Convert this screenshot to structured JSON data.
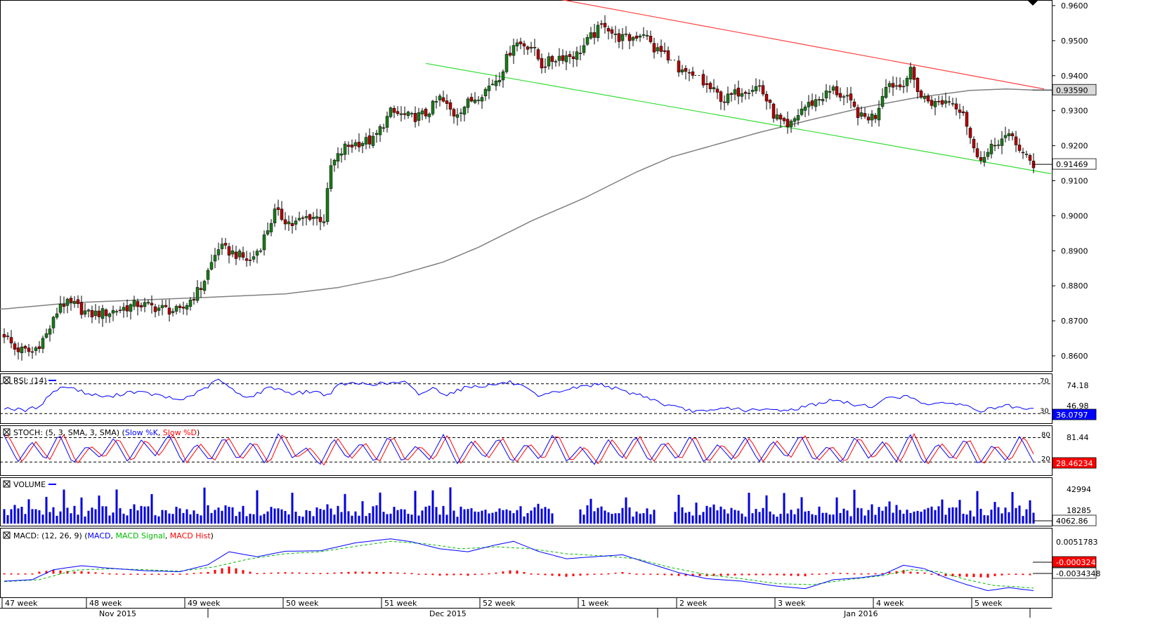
{
  "colors": {
    "up": "#1a7a1a",
    "down": "#b00000",
    "ma": "#808080",
    "channel_top": "#ff4040",
    "channel_bottom": "#33dd33",
    "rsi": "#0000ff",
    "stoch_k": "#0000ff",
    "stoch_d": "#ff0000",
    "volume": "#0000dd",
    "macd": "#0000ff",
    "macd_signal": "#00bb00",
    "macd_hist": "#ff0000",
    "badge_blue": "#0000ff",
    "badge_red": "#ff0000",
    "badge_gray": "#d9d9d9"
  },
  "chart_data": [
    {
      "type": "candlestick",
      "panel": "price",
      "ylim": [
        0.856,
        0.962
      ],
      "y_ticks": [
        "0.9600",
        "0.9500",
        "0.9400",
        "0.9300",
        "0.9200",
        "0.9100",
        "0.9000",
        "0.8900",
        "0.8800",
        "0.8700",
        "0.8600"
      ],
      "y_tick_values": [
        0.96,
        0.95,
        0.94,
        0.93,
        0.92,
        0.91,
        0.9,
        0.89,
        0.88,
        0.87,
        0.86
      ],
      "anchors": [
        [
          0,
          0.8663
        ],
        [
          3,
          0.862
        ],
        [
          8,
          0.861
        ],
        [
          12,
          0.866
        ],
        [
          14,
          0.87
        ],
        [
          16,
          0.875
        ],
        [
          20,
          0.8745
        ],
        [
          24,
          0.8718
        ],
        [
          30,
          0.8725
        ],
        [
          38,
          0.8748
        ],
        [
          45,
          0.8735
        ],
        [
          50,
          0.8725
        ],
        [
          56,
          0.8795
        ],
        [
          61,
          0.891
        ],
        [
          66,
          0.889
        ],
        [
          70,
          0.887
        ],
        [
          73,
          0.8915
        ],
        [
          77,
          0.901
        ],
        [
          82,
          0.8975
        ],
        [
          87,
          0.9
        ],
        [
          91,
          0.899
        ],
        [
          93,
          0.914
        ],
        [
          97,
          0.9195
        ],
        [
          101,
          0.921
        ],
        [
          105,
          0.9215
        ],
        [
          110,
          0.9295
        ],
        [
          116,
          0.928
        ],
        [
          120,
          0.929
        ],
        [
          124,
          0.9335
        ],
        [
          128,
          0.929
        ],
        [
          133,
          0.933
        ],
        [
          137,
          0.936
        ],
        [
          141,
          0.94
        ],
        [
          145,
          0.9495
        ],
        [
          150,
          0.9485
        ],
        [
          153,
          0.943
        ],
        [
          158,
          0.9455
        ],
        [
          163,
          0.946
        ],
        [
          167,
          0.951
        ],
        [
          171,
          0.955
        ],
        [
          174,
          0.951
        ],
        [
          178,
          0.9505
        ],
        [
          182,
          0.9525
        ],
        [
          185,
          0.9475
        ],
        [
          188,
          0.9465
        ],
        [
          190,
          0.941
        ],
        [
          195,
          0.94
        ],
        [
          200,
          0.937
        ],
        [
          205,
          0.933
        ],
        [
          210,
          0.936
        ],
        [
          215,
          0.937
        ],
        [
          219,
          0.929
        ],
        [
          223,
          0.9245
        ],
        [
          227,
          0.9305
        ],
        [
          232,
          0.9335
        ],
        [
          236,
          0.936
        ],
        [
          240,
          0.933
        ],
        [
          244,
          0.928
        ],
        [
          248,
          0.9285
        ],
        [
          251,
          0.938
        ],
        [
          255,
          0.937
        ],
        [
          258,
          0.941
        ],
        [
          261,
          0.934
        ],
        [
          265,
          0.932
        ],
        [
          269,
          0.933
        ],
        [
          273,
          0.93
        ],
        [
          276,
          0.9185
        ],
        [
          279,
          0.9165
        ],
        [
          283,
          0.9215
        ],
        [
          287,
          0.9225
        ],
        [
          290,
          0.9175
        ],
        [
          293,
          0.9145
        ]
      ],
      "gaps": [
        [
          190,
          191
        ],
        [
          197,
          198
        ]
      ],
      "ma_anchors": [
        [
          0,
          0.8734
        ],
        [
          20,
          0.8752
        ],
        [
          40,
          0.876
        ],
        [
          60,
          0.8768
        ],
        [
          80,
          0.8777
        ],
        [
          95,
          0.8795
        ],
        [
          110,
          0.8825
        ],
        [
          125,
          0.8868
        ],
        [
          135,
          0.891
        ],
        [
          150,
          0.8985
        ],
        [
          165,
          0.905
        ],
        [
          180,
          0.9125
        ],
        [
          190,
          0.9168
        ],
        [
          200,
          0.9196
        ],
        [
          215,
          0.9238
        ],
        [
          230,
          0.9275
        ],
        [
          245,
          0.931
        ],
        [
          260,
          0.9338
        ],
        [
          275,
          0.9358
        ],
        [
          285,
          0.9362
        ],
        [
          293,
          0.9359
        ]
      ],
      "channel_top": [
        [
          157,
          0.962
        ],
        [
          296,
          0.9362
        ]
      ],
      "channel_bottom": [
        [
          120,
          0.9435
        ],
        [
          298,
          0.912
        ]
      ],
      "last_price": "0.91469",
      "ma_value": "0.93590"
    },
    {
      "type": "line",
      "panel": "rsi",
      "title": "RSI: (14)",
      "ylim": [
        18,
        82
      ],
      "levels": [
        70,
        30
      ],
      "level_labels": [
        "70",
        "30"
      ],
      "scale_labels": [
        "74.18",
        "46.98"
      ],
      "anchors": [
        [
          0,
          38
        ],
        [
          6,
          34
        ],
        [
          10,
          40
        ],
        [
          14,
          60
        ],
        [
          18,
          67
        ],
        [
          24,
          56
        ],
        [
          30,
          52
        ],
        [
          36,
          60
        ],
        [
          42,
          56
        ],
        [
          50,
          48
        ],
        [
          56,
          60
        ],
        [
          61,
          76
        ],
        [
          66,
          58
        ],
        [
          70,
          52
        ],
        [
          76,
          66
        ],
        [
          82,
          57
        ],
        [
          88,
          60
        ],
        [
          92,
          55
        ],
        [
          96,
          70
        ],
        [
          102,
          70
        ],
        [
          108,
          70
        ],
        [
          114,
          72
        ],
        [
          118,
          56
        ],
        [
          122,
          64
        ],
        [
          126,
          56
        ],
        [
          132,
          66
        ],
        [
          138,
          68
        ],
        [
          144,
          72
        ],
        [
          148,
          65
        ],
        [
          152,
          52
        ],
        [
          158,
          60
        ],
        [
          164,
          66
        ],
        [
          170,
          70
        ],
        [
          176,
          60
        ],
        [
          182,
          54
        ],
        [
          188,
          42
        ],
        [
          194,
          35
        ],
        [
          200,
          32
        ],
        [
          206,
          38
        ],
        [
          212,
          34
        ],
        [
          218,
          35
        ],
        [
          224,
          35
        ],
        [
          230,
          42
        ],
        [
          236,
          48
        ],
        [
          242,
          42
        ],
        [
          248,
          40
        ],
        [
          252,
          53
        ],
        [
          258,
          52
        ],
        [
          262,
          44
        ],
        [
          266,
          42
        ],
        [
          270,
          45
        ],
        [
          274,
          40
        ],
        [
          278,
          33
        ],
        [
          282,
          38
        ],
        [
          286,
          40
        ],
        [
          290,
          35
        ],
        [
          293,
          36
        ]
      ],
      "value_badge": "36.0797"
    },
    {
      "type": "line",
      "panel": "stoch",
      "title": "STOCH: (5, 3, SMA, 3, SMA)",
      "legend": [
        "Slow %K",
        "Slow %D"
      ],
      "ylim": [
        0,
        100
      ],
      "levels": [
        80,
        20
      ],
      "level_labels": [
        "80",
        "20"
      ],
      "scale_labels": [
        "81.44"
      ],
      "cycle_pattern": [
        85,
        20,
        70,
        25,
        90,
        15,
        60,
        30,
        80,
        20,
        75,
        35,
        88,
        18,
        65,
        22,
        82,
        25,
        70,
        15,
        92,
        30,
        55,
        12,
        78,
        28,
        68,
        18,
        85,
        20,
        60,
        25,
        88,
        15,
        72,
        30,
        80,
        18,
        66,
        25,
        90,
        20,
        58,
        14,
        76,
        28,
        84,
        20,
        70,
        25,
        86,
        18,
        64,
        26,
        80,
        20,
        72,
        30,
        88,
        22,
        60,
        18,
        82,
        28,
        70,
        20,
        90,
        15,
        66,
        25,
        78,
        12,
        62,
        22,
        84,
        20
      ],
      "value_badge": "28.46234"
    },
    {
      "type": "bar",
      "panel": "volume",
      "title": "VOLUME",
      "scale_labels": [
        "42994",
        "18285"
      ],
      "ylim": [
        0,
        60000
      ],
      "gaps": [
        [
          157,
          163
        ],
        [
          186,
          190
        ]
      ],
      "value_badge": "4062.86"
    },
    {
      "type": "line",
      "panel": "macd",
      "title": "MACD: (12, 26, 9)",
      "legend": [
        "MACD",
        "MACD Signal",
        "MACD Hist"
      ],
      "ylim": [
        -0.0046,
        0.0078
      ],
      "scale_labels": [
        "0.0051783"
      ],
      "macd_anchors": [
        [
          0,
          -0.0015
        ],
        [
          8,
          -0.0012
        ],
        [
          14,
          0.0008
        ],
        [
          22,
          0.0016
        ],
        [
          30,
          0.0011
        ],
        [
          40,
          0.0006
        ],
        [
          50,
          0.0004
        ],
        [
          58,
          0.0018
        ],
        [
          64,
          0.0044
        ],
        [
          72,
          0.0034
        ],
        [
          80,
          0.0045
        ],
        [
          90,
          0.0046
        ],
        [
          100,
          0.0062
        ],
        [
          110,
          0.007
        ],
        [
          116,
          0.0064
        ],
        [
          124,
          0.005
        ],
        [
          132,
          0.0044
        ],
        [
          140,
          0.0058
        ],
        [
          145,
          0.0065
        ],
        [
          152,
          0.0045
        ],
        [
          160,
          0.003
        ],
        [
          168,
          0.0034
        ],
        [
          176,
          0.0038
        ],
        [
          184,
          0.002
        ],
        [
          192,
          0.0002
        ],
        [
          200,
          -0.001
        ],
        [
          210,
          -0.0015
        ],
        [
          220,
          -0.0025
        ],
        [
          228,
          -0.003
        ],
        [
          236,
          -0.0012
        ],
        [
          244,
          -0.0008
        ],
        [
          250,
          -0.0002
        ],
        [
          256,
          0.0017
        ],
        [
          262,
          0.001
        ],
        [
          268,
          -0.0008
        ],
        [
          274,
          -0.0022
        ],
        [
          280,
          -0.0034
        ],
        [
          286,
          -0.0028
        ],
        [
          293,
          -0.0034
        ]
      ],
      "signal_anchors": [
        [
          0,
          -0.0016
        ],
        [
          10,
          -0.0012
        ],
        [
          20,
          0.0007
        ],
        [
          30,
          0.001
        ],
        [
          40,
          0.0008
        ],
        [
          50,
          0.0005
        ],
        [
          60,
          0.0014
        ],
        [
          70,
          0.003
        ],
        [
          80,
          0.004
        ],
        [
          90,
          0.0044
        ],
        [
          100,
          0.0055
        ],
        [
          110,
          0.0065
        ],
        [
          120,
          0.006
        ],
        [
          130,
          0.005
        ],
        [
          140,
          0.0054
        ],
        [
          150,
          0.005
        ],
        [
          160,
          0.004
        ],
        [
          170,
          0.0036
        ],
        [
          180,
          0.003
        ],
        [
          190,
          0.0012
        ],
        [
          200,
          -0.0002
        ],
        [
          210,
          -0.001
        ],
        [
          220,
          -0.002
        ],
        [
          230,
          -0.0022
        ],
        [
          240,
          -0.0012
        ],
        [
          250,
          -0.0004
        ],
        [
          258,
          0.0008
        ],
        [
          266,
          0.0004
        ],
        [
          274,
          -0.0012
        ],
        [
          282,
          -0.0024
        ],
        [
          288,
          -0.0026
        ],
        [
          293,
          -0.0029
        ]
      ],
      "value_badges": [
        "-0.0003243",
        "-0.0034348"
      ]
    }
  ],
  "x_axis": {
    "week_labels": [
      {
        "i": 0,
        "label": "47 week"
      },
      {
        "i": 24,
        "label": "48 week"
      },
      {
        "i": 52,
        "label": "49 week"
      },
      {
        "i": 80,
        "label": "50 week"
      },
      {
        "i": 108,
        "label": "51 week"
      },
      {
        "i": 136,
        "label": "52 week"
      },
      {
        "i": 164,
        "label": "1 week"
      },
      {
        "i": 192,
        "label": "2 week"
      },
      {
        "i": 220,
        "label": "3 week"
      },
      {
        "i": 248,
        "label": "4 week"
      },
      {
        "i": 276,
        "label": "5 week"
      }
    ],
    "month_labels": [
      {
        "i": 27,
        "label": "Nov 2015"
      },
      {
        "i": 121,
        "label": "Dec 2015"
      },
      {
        "i": 239,
        "label": "Jan 2016"
      }
    ],
    "month_separators": [
      58,
      186,
      292
    ]
  }
}
